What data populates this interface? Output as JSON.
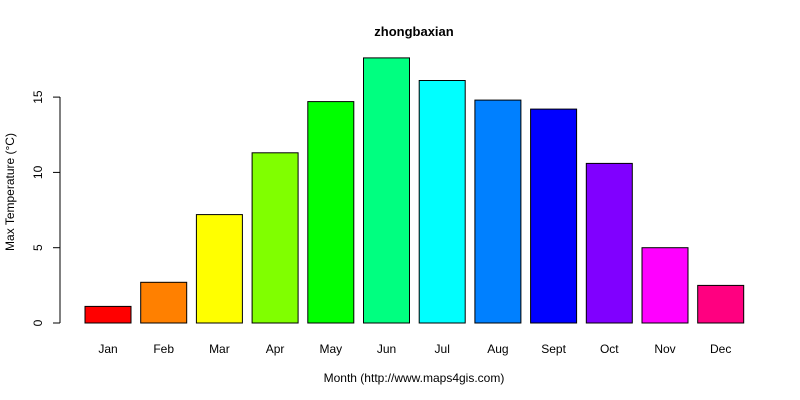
{
  "chart_data": {
    "type": "bar",
    "title": "zhongbaxian",
    "xlabel": "Month (http://www.maps4gis.com)",
    "ylabel": "Max Temperature (°C)",
    "categories": [
      "Jan",
      "Feb",
      "Mar",
      "Apr",
      "May",
      "Jun",
      "Jul",
      "Aug",
      "Sept",
      "Oct",
      "Nov",
      "Dec"
    ],
    "values": [
      1.1,
      2.7,
      7.2,
      11.3,
      14.7,
      17.6,
      16.1,
      14.8,
      14.2,
      10.6,
      5.0,
      2.5
    ],
    "colors": [
      "#FF0000",
      "#FF8000",
      "#FFFF00",
      "#80FF00",
      "#00FF00",
      "#00FF80",
      "#00FFFF",
      "#0080FF",
      "#0000FF",
      "#8000FF",
      "#FF00FF",
      "#FF0080"
    ],
    "yticks": [
      0,
      5,
      10,
      15
    ],
    "ylim": [
      0,
      17.6
    ],
    "grid": false,
    "legend": "none"
  }
}
